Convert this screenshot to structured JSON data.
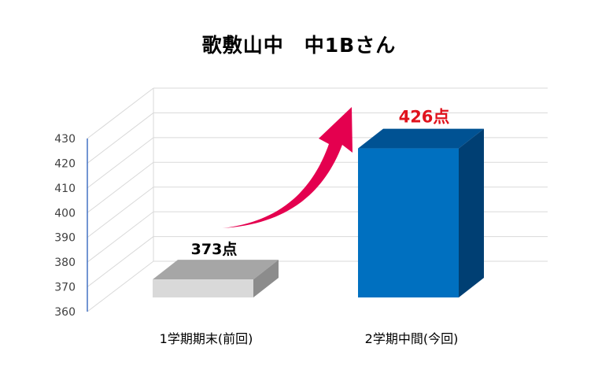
{
  "chart_data": {
    "type": "bar",
    "title": "歌敷山中　中1Bさん",
    "categories": [
      "1学期期末(前回)",
      "2学期中間(今回)"
    ],
    "values": [
      373,
      426
    ],
    "data_labels": [
      "373点",
      "426点"
    ],
    "ylim": [
      360,
      430
    ],
    "yticks": [
      360,
      370,
      380,
      390,
      400,
      410,
      420,
      430
    ],
    "xlabel": "",
    "ylabel": "",
    "grid": true,
    "legend": "none",
    "bar_colors": [
      {
        "front": "#d9d9d9",
        "top": "#a6a6a6",
        "side": "#8c8c8c"
      },
      {
        "front": "#0070c0",
        "top": "#005293",
        "side": "#003f73"
      }
    ],
    "label_colors": [
      "#000000",
      "#e0121c"
    ],
    "arrow_color": "#e4004f",
    "grid_color": "#d9d9d9",
    "axis_color": "#4472c4",
    "tick_label_color": "#404040"
  }
}
